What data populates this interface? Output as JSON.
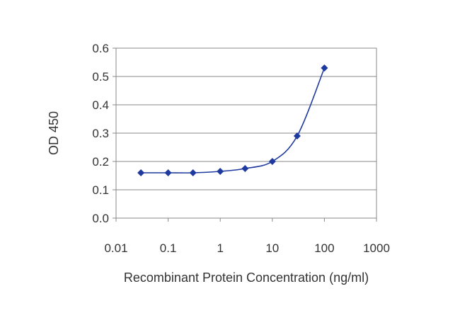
{
  "chart_data": {
    "type": "line",
    "title": "",
    "xlabel": "Recombinant Protein Concentration (ng/ml)",
    "ylabel": "OD 450",
    "x_scale": "log",
    "xlim": [
      0.01,
      1000
    ],
    "ylim": [
      0,
      0.6
    ],
    "x_ticks": [
      "0.01",
      "0.1",
      "1",
      "10",
      "100",
      "1000"
    ],
    "y_ticks": [
      "0.0",
      "0.1",
      "0.2",
      "0.3",
      "0.4",
      "0.5",
      "0.6"
    ],
    "grid": "horizontal",
    "marker": "diamond",
    "series": [
      {
        "x": [
          0.03,
          0.1,
          0.3,
          1,
          3,
          10,
          30,
          100
        ],
        "y": [
          0.16,
          0.16,
          0.16,
          0.165,
          0.175,
          0.2,
          0.29,
          0.53
        ],
        "color": "#1f3a9e"
      }
    ]
  }
}
